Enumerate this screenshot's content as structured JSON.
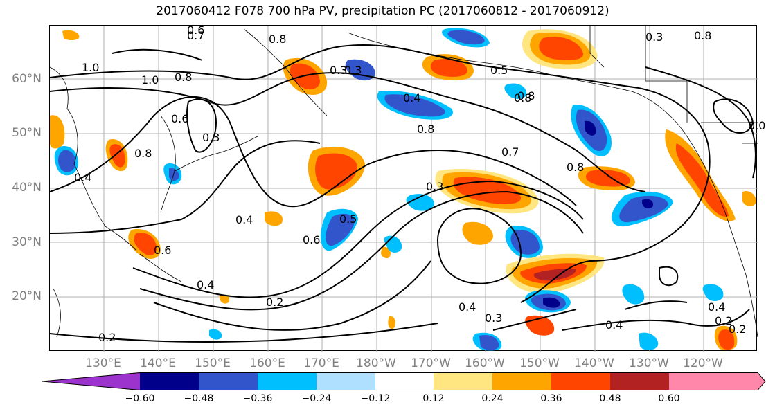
{
  "title": "2017060412 F078 700 hPa PV, precipitation PC (2017060812 - 2017060912)",
  "lat_labels": [
    "60°N",
    "50°N",
    "40°N",
    "30°N",
    "20°N"
  ],
  "lon_labels": [
    "130°E",
    "140°E",
    "150°E",
    "160°E",
    "170°E",
    "180°W",
    "170°W",
    "160°W",
    "150°W",
    "140°W",
    "130°W",
    "120°W"
  ],
  "colorbar": {
    "ticks": [
      "−0.60",
      "−0.48",
      "−0.36",
      "−0.24",
      "−0.12",
      "0.12",
      "0.24",
      "0.36",
      "0.48",
      "0.60"
    ],
    "colors": [
      "#9b33cc",
      "#00008b",
      "#3355cc",
      "#00bfff",
      "#b0e0ff",
      "#ffffff",
      "#ffe680",
      "#ffa500",
      "#ff4500",
      "#b22222",
      "#ff88aa"
    ]
  },
  "contour_labels": [
    "0.6",
    "0.7",
    "0.8",
    "1.0",
    "1.0",
    "0.8",
    "0.8",
    "0.3",
    "0.4",
    "0.8",
    "0.8",
    "0.5",
    "0.8",
    "0.7",
    "0.8",
    "0.3",
    "0.6",
    "0.4",
    "0.3",
    "0.6",
    "0.5",
    "0.4",
    "0.6",
    "0.4",
    "0.2",
    "0.2",
    "0.4",
    "0.3",
    "0.4",
    "0.2",
    "0.2",
    "0.3",
    "0.8",
    "0.3",
    "0.4",
    "0.0"
  ]
}
